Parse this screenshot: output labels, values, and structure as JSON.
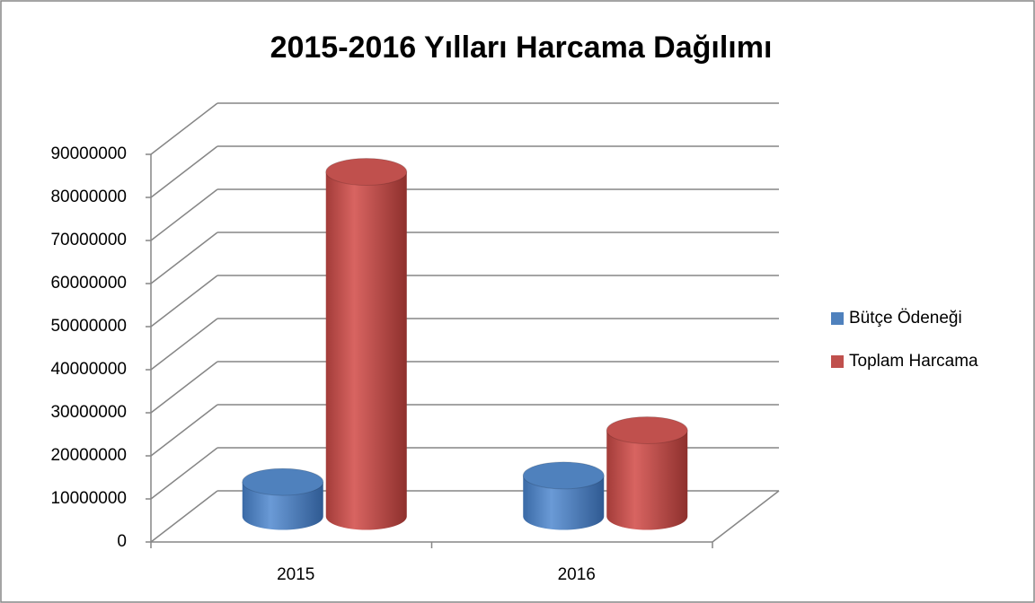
{
  "chart_data": {
    "type": "bar3d",
    "title": "2015-2016 Yılları Harcama Dağılımı",
    "categories": [
      "2015",
      "2016"
    ],
    "series": [
      {
        "name": "Bütçe Ödeneği",
        "color": "#4f81bd",
        "values": [
          8000000,
          9500000
        ]
      },
      {
        "name": "Toplam Harcama",
        "color": "#c0504d",
        "values": [
          80000000,
          20000000
        ]
      }
    ],
    "ylim": [
      0,
      90000000
    ],
    "yticks": [
      0,
      10000000,
      20000000,
      30000000,
      40000000,
      50000000,
      60000000,
      70000000,
      80000000,
      90000000
    ],
    "grid": true,
    "legend": "right"
  }
}
